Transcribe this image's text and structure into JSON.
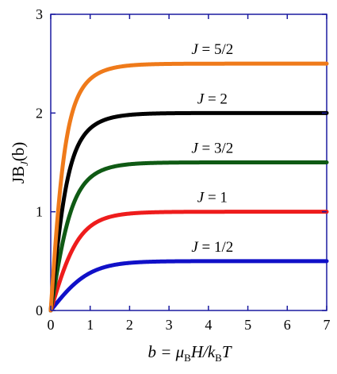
{
  "chart_data": {
    "type": "line",
    "title": "",
    "xlabel_parts": [
      "b = μ",
      "B",
      "H/k",
      "B",
      "T"
    ],
    "ylabel_parts": [
      "JB",
      "J",
      "(b)"
    ],
    "xlim": [
      0,
      7
    ],
    "ylim": [
      0,
      3
    ],
    "x_ticks": [
      0,
      1,
      2,
      3,
      4,
      5,
      6,
      7
    ],
    "y_ticks": [
      0,
      1,
      2,
      3
    ],
    "x_tick_labels": [
      "0",
      "1",
      "2",
      "3",
      "4",
      "5",
      "6",
      "7"
    ],
    "y_tick_labels": [
      "0",
      "1",
      "2",
      "3"
    ],
    "grid": false,
    "series": [
      {
        "label": "J = 1/2",
        "J": 0.5,
        "color": "#1010c8"
      },
      {
        "label": "J = 1",
        "J": 1.0,
        "color": "#ee1c1c"
      },
      {
        "label": "J = 3/2",
        "J": 1.5,
        "color": "#0f5a14"
      },
      {
        "label": "J = 2",
        "J": 2.0,
        "color": "#000000"
      },
      {
        "label": "J = 5/2",
        "J": 2.5,
        "color": "#ef7a1a"
      }
    ],
    "frame_color": "#1a1aa0"
  }
}
